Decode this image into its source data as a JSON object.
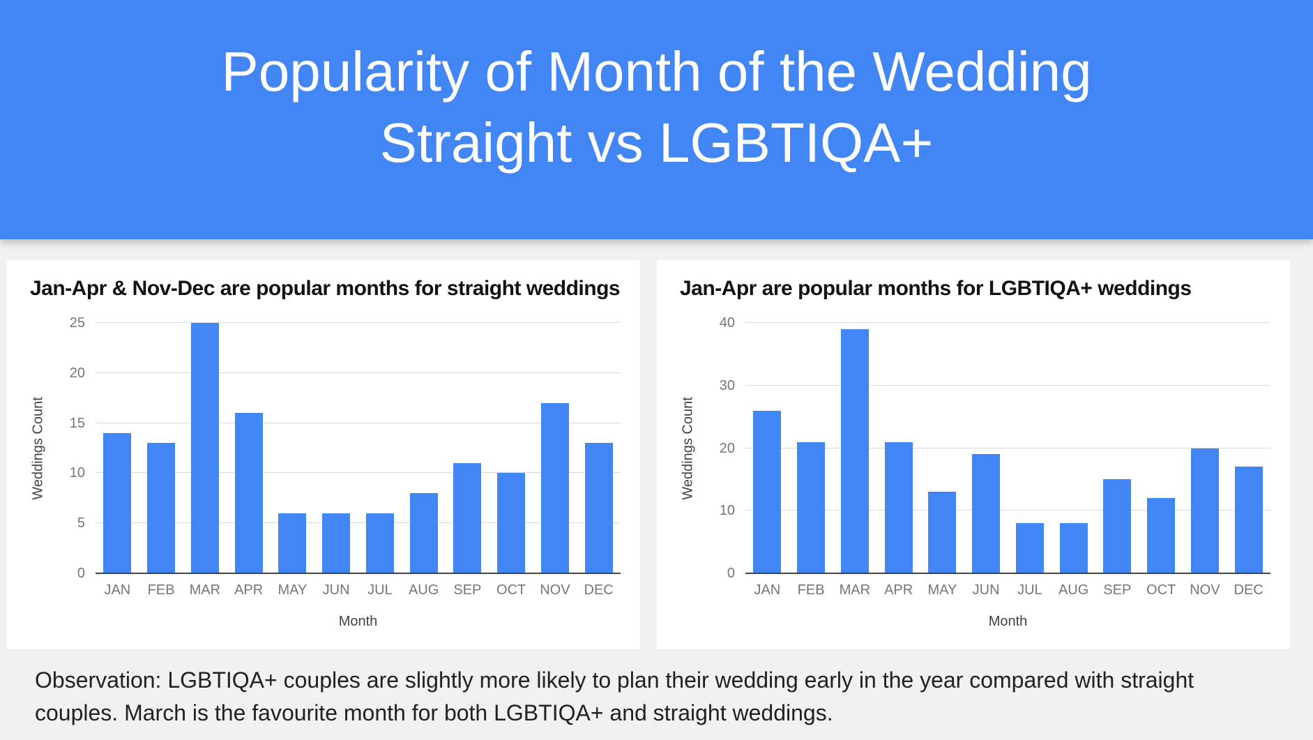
{
  "header": {
    "title_line1": "Popularity of Month of the Wedding",
    "title_line2": "Straight vs LGBTIQA+"
  },
  "chart_data": [
    {
      "type": "bar",
      "title": "Jan-Apr & Nov-Dec are popular months for straight weddings",
      "categories": [
        "JAN",
        "FEB",
        "MAR",
        "APR",
        "MAY",
        "JUN",
        "JUL",
        "AUG",
        "SEP",
        "OCT",
        "NOV",
        "DEC"
      ],
      "values": [
        14,
        13,
        25,
        16,
        6,
        6,
        6,
        8,
        11,
        10,
        17,
        13
      ],
      "xlabel": "Month",
      "ylabel": "Weddings Count",
      "ylim": [
        0,
        25
      ],
      "ytick_step": 5,
      "bar_color": "#4285f4",
      "grid": true,
      "legend": "none"
    },
    {
      "type": "bar",
      "title": "Jan-Apr are popular months for LGBTIQA+ weddings",
      "categories": [
        "JAN",
        "FEB",
        "MAR",
        "APR",
        "MAY",
        "JUN",
        "JUL",
        "AUG",
        "SEP",
        "OCT",
        "NOV",
        "DEC"
      ],
      "values": [
        26,
        21,
        39,
        21,
        13,
        19,
        8,
        8,
        15,
        12,
        20,
        17
      ],
      "xlabel": "Month",
      "ylabel": "Weddings Count",
      "ylim": [
        0,
        40
      ],
      "ytick_step": 10,
      "bar_color": "#4285f4",
      "grid": true,
      "legend": "none"
    }
  ],
  "observation": "Observation: LGBTIQA+ couples are slightly more likely to plan their wedding early in the year compared with straight couples. March is the favourite month for both LGBTIQA+ and straight weddings.",
  "colors": {
    "banner": "#4285f4",
    "bar": "#4285f4",
    "background": "#f1f1f2",
    "card": "#ffffff",
    "gridline": "#dadada",
    "axis_line": "#424242",
    "tick_label": "#757575",
    "axis_title": "#424242",
    "chart_title": "#121212",
    "banner_text": "#ffffff",
    "observation_text": "#202124"
  }
}
